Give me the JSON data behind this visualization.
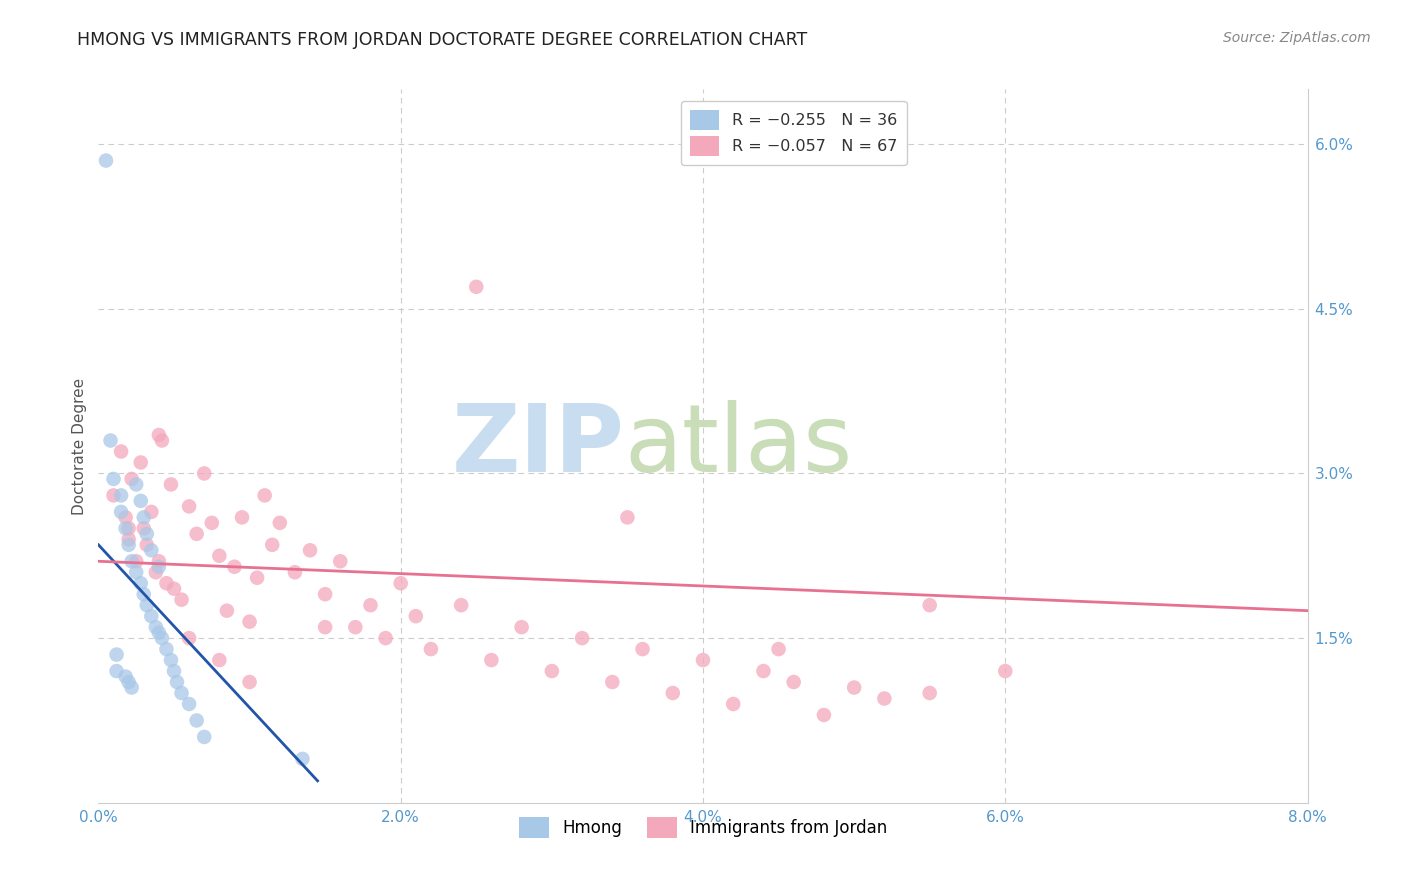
{
  "title": "HMONG VS IMMIGRANTS FROM JORDAN DOCTORATE DEGREE CORRELATION CHART",
  "source": "Source: ZipAtlas.com",
  "ylabel": "Doctorate Degree",
  "hmong_color": "#a8c8e8",
  "jordan_color": "#f4a8bc",
  "hmong_line_color": "#2255aa",
  "jordan_line_color": "#e87090",
  "background_color": "#ffffff",
  "grid_color": "#cccccc",
  "title_color": "#333333",
  "watermark_zip": "ZIP",
  "watermark_atlas": "atlas",
  "watermark_color_zip": "#ccddf0",
  "watermark_color_atlas": "#d8e8c0",
  "xlim": [
    0.0,
    8.0
  ],
  "ylim": [
    0.0,
    6.5
  ],
  "x_ticks": [
    0.0,
    2.0,
    4.0,
    6.0,
    8.0
  ],
  "y_ticks": [
    0.0,
    1.5,
    3.0,
    4.5,
    6.0
  ],
  "x_tick_labels": [
    "0.0%",
    "2.0%",
    "4.0%",
    "6.0%",
    "8.0%"
  ],
  "y_tick_labels": [
    "",
    "1.5%",
    "3.0%",
    "4.5%",
    "6.0%"
  ],
  "legend1_labels": [
    "R = −0.255   N = 36",
    "R = −0.057   N = 67"
  ],
  "legend1_colors": [
    "#a8c8e8",
    "#f4a8bc"
  ],
  "legend2_labels": [
    "Hmong",
    "Immigrants from Jordan"
  ],
  "legend2_colors": [
    "#a8c8e8",
    "#f4a8bc"
  ],
  "hmong_x": [
    0.05,
    0.08,
    0.1,
    0.12,
    0.12,
    0.15,
    0.15,
    0.18,
    0.18,
    0.2,
    0.2,
    0.22,
    0.22,
    0.25,
    0.25,
    0.28,
    0.28,
    0.3,
    0.3,
    0.32,
    0.32,
    0.35,
    0.35,
    0.38,
    0.4,
    0.4,
    0.42,
    0.45,
    0.48,
    0.5,
    0.52,
    0.55,
    0.6,
    0.65,
    0.7,
    1.35
  ],
  "hmong_y": [
    5.85,
    3.3,
    2.95,
    1.35,
    1.2,
    2.8,
    2.65,
    2.5,
    1.15,
    2.35,
    1.1,
    2.2,
    1.05,
    2.9,
    2.1,
    2.75,
    2.0,
    2.6,
    1.9,
    2.45,
    1.8,
    2.3,
    1.7,
    1.6,
    2.15,
    1.55,
    1.5,
    1.4,
    1.3,
    1.2,
    1.1,
    1.0,
    0.9,
    0.75,
    0.6,
    0.4
  ],
  "jordan_x": [
    0.1,
    0.15,
    0.18,
    0.2,
    0.22,
    0.25,
    0.28,
    0.3,
    0.32,
    0.35,
    0.38,
    0.4,
    0.42,
    0.45,
    0.48,
    0.5,
    0.55,
    0.6,
    0.65,
    0.7,
    0.75,
    0.8,
    0.85,
    0.9,
    0.95,
    1.0,
    1.05,
    1.1,
    1.15,
    1.2,
    1.3,
    1.4,
    1.5,
    1.6,
    1.7,
    1.8,
    1.9,
    2.0,
    2.1,
    2.2,
    2.4,
    2.6,
    2.8,
    3.0,
    3.2,
    3.4,
    3.6,
    3.8,
    4.0,
    4.2,
    4.4,
    4.6,
    4.8,
    5.0,
    5.2,
    5.5,
    6.0,
    2.5,
    3.5,
    4.5,
    5.5,
    0.2,
    0.4,
    0.6,
    0.8,
    1.0,
    1.5
  ],
  "jordan_y": [
    2.8,
    3.2,
    2.6,
    2.4,
    2.95,
    2.2,
    3.1,
    2.5,
    2.35,
    2.65,
    2.1,
    3.35,
    3.3,
    2.0,
    2.9,
    1.95,
    1.85,
    2.7,
    2.45,
    3.0,
    2.55,
    2.25,
    1.75,
    2.15,
    2.6,
    1.65,
    2.05,
    2.8,
    2.35,
    2.55,
    2.1,
    2.3,
    1.9,
    2.2,
    1.6,
    1.8,
    1.5,
    2.0,
    1.7,
    1.4,
    1.8,
    1.3,
    1.6,
    1.2,
    1.5,
    1.1,
    1.4,
    1.0,
    1.3,
    0.9,
    1.2,
    1.1,
    0.8,
    1.05,
    0.95,
    1.0,
    1.2,
    4.7,
    2.6,
    1.4,
    1.8,
    2.5,
    2.2,
    1.5,
    1.3,
    1.1,
    1.6
  ],
  "hmong_line_x": [
    0.0,
    1.45
  ],
  "hmong_line_y": [
    2.35,
    0.2
  ],
  "jordan_line_x": [
    0.0,
    8.0
  ],
  "jordan_line_y": [
    2.2,
    1.75
  ]
}
